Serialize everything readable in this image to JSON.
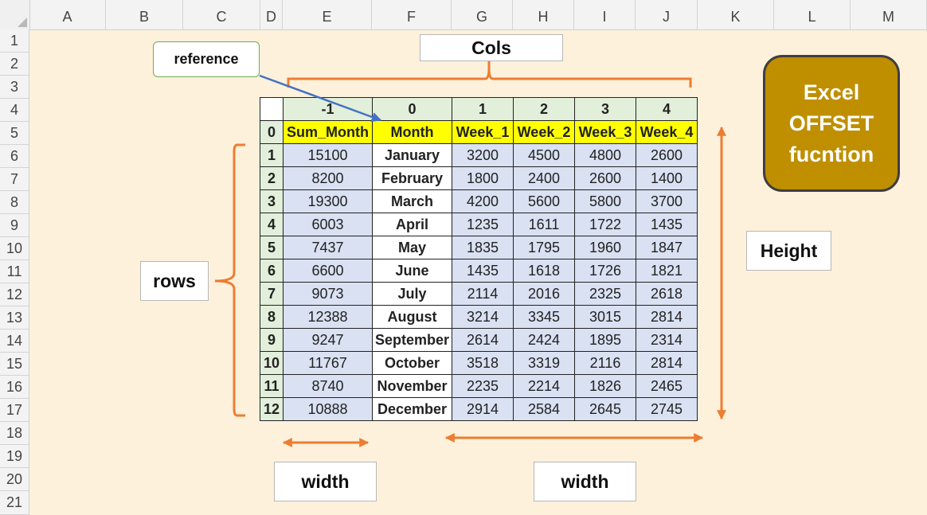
{
  "spreadsheet": {
    "column_headers": [
      "A",
      "B",
      "C",
      "D",
      "E",
      "F",
      "G",
      "H",
      "I",
      "J",
      "K",
      "L",
      "M"
    ],
    "row_headers": [
      "1",
      "2",
      "3",
      "4",
      "5",
      "6",
      "7",
      "8",
      "9",
      "10",
      "11",
      "12",
      "13",
      "14",
      "15",
      "16",
      "17",
      "18",
      "19",
      "20",
      "21"
    ]
  },
  "table": {
    "col_offsets": [
      "-1",
      "0",
      "1",
      "2",
      "3",
      "4"
    ],
    "header_offset": "0",
    "headers": [
      "Sum_Month",
      "Month",
      "Week_1",
      "Week_2",
      "Week_3",
      "Week_4"
    ],
    "rows": [
      {
        "idx": "1",
        "sum": "15100",
        "month": "January",
        "w1": "3200",
        "w2": "4500",
        "w3": "4800",
        "w4": "2600"
      },
      {
        "idx": "2",
        "sum": "8200",
        "month": "February",
        "w1": "1800",
        "w2": "2400",
        "w3": "2600",
        "w4": "1400"
      },
      {
        "idx": "3",
        "sum": "19300",
        "month": "March",
        "w1": "4200",
        "w2": "5600",
        "w3": "5800",
        "w4": "3700"
      },
      {
        "idx": "4",
        "sum": "6003",
        "month": "April",
        "w1": "1235",
        "w2": "1611",
        "w3": "1722",
        "w4": "1435"
      },
      {
        "idx": "5",
        "sum": "7437",
        "month": "May",
        "w1": "1835",
        "w2": "1795",
        "w3": "1960",
        "w4": "1847"
      },
      {
        "idx": "6",
        "sum": "6600",
        "month": "June",
        "w1": "1435",
        "w2": "1618",
        "w3": "1726",
        "w4": "1821"
      },
      {
        "idx": "7",
        "sum": "9073",
        "month": "July",
        "w1": "2114",
        "w2": "2016",
        "w3": "2325",
        "w4": "2618"
      },
      {
        "idx": "8",
        "sum": "12388",
        "month": "August",
        "w1": "3214",
        "w2": "3345",
        "w3": "3015",
        "w4": "2814"
      },
      {
        "idx": "9",
        "sum": "9247",
        "month": "September",
        "w1": "2614",
        "w2": "2424",
        "w3": "1895",
        "w4": "2314"
      },
      {
        "idx": "10",
        "sum": "11767",
        "month": "October",
        "w1": "3518",
        "w2": "3319",
        "w3": "2116",
        "w4": "2814"
      },
      {
        "idx": "11",
        "sum": "8740",
        "month": "November",
        "w1": "2235",
        "w2": "2214",
        "w3": "1826",
        "w4": "2465"
      },
      {
        "idx": "12",
        "sum": "10888",
        "month": "December",
        "w1": "2914",
        "w2": "2584",
        "w3": "2645",
        "w4": "2745"
      }
    ]
  },
  "labels": {
    "reference": "reference",
    "cols": "Cols",
    "rows": "rows",
    "height": "Height",
    "width_left": "width",
    "width_right": "width"
  },
  "badge": {
    "line1": "Excel",
    "line2": "OFFSET",
    "line3": "fucntion"
  },
  "colors": {
    "sheet_bg": "#fdf1dc",
    "header_yellow": "#ffff00",
    "index_green": "#e2efda",
    "value_blue": "#d9e1f2",
    "annotation_orange": "#ed7d31",
    "reference_arrow": "#4472c4",
    "badge_gold": "#bf8f00"
  }
}
